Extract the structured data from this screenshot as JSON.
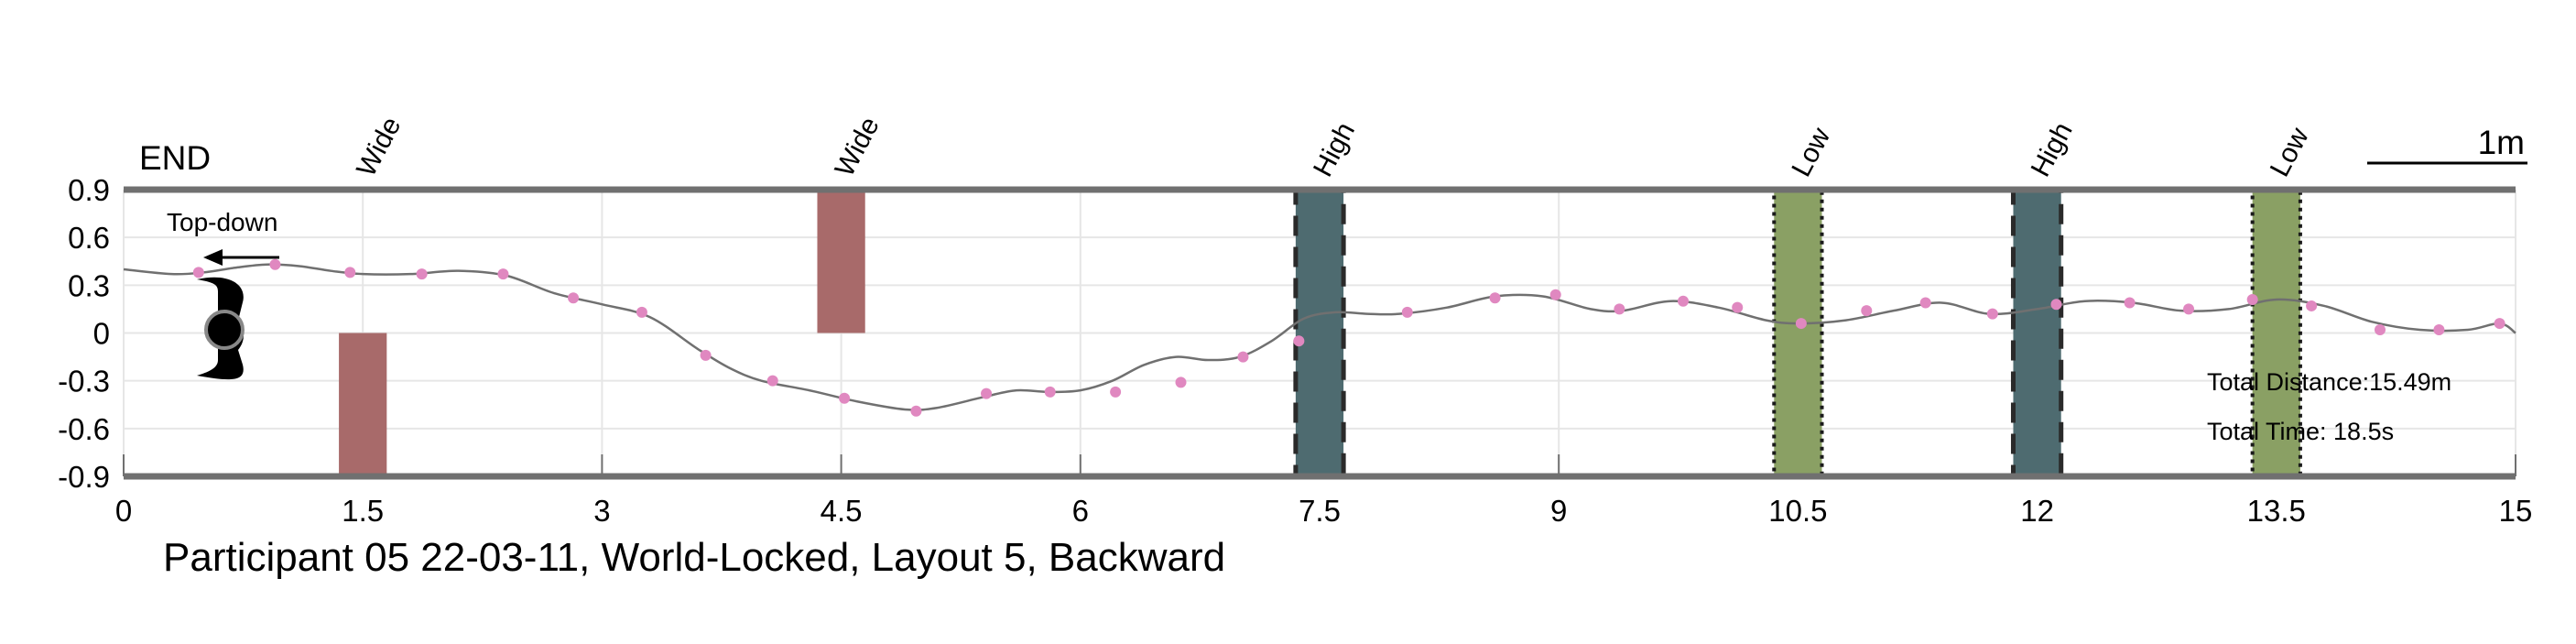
{
  "chart_data": {
    "type": "line",
    "title": "Participant 05 22-03-11, World-Locked, Layout 5, Backward",
    "xlabel": "",
    "ylabel": "",
    "xlim": [
      0,
      15
    ],
    "ylim": [
      -0.9,
      0.9
    ],
    "x_ticks": [
      "0",
      "1.5",
      "3",
      "4.5",
      "6",
      "7.5",
      "9",
      "10.5",
      "12",
      "13.5",
      "15"
    ],
    "y_ticks": [
      "0.9",
      "0.6",
      "0.3",
      "0",
      "-0.3",
      "-0.6",
      "-0.9"
    ],
    "grid": true,
    "path": {
      "x": [
        0,
        0.3,
        0.5,
        0.7,
        0.9,
        1.1,
        1.3,
        1.5,
        1.8,
        2.1,
        2.4,
        2.7,
        3.0,
        3.3,
        3.6,
        3.8,
        4.0,
        4.3,
        4.6,
        4.9,
        5.1,
        5.4,
        5.6,
        5.8,
        6.0,
        6.2,
        6.4,
        6.6,
        6.8,
        7.0,
        7.2,
        7.4,
        7.6,
        7.8,
        8.0,
        8.3,
        8.6,
        8.9,
        9.2,
        9.4,
        9.7,
        10.0,
        10.3,
        10.5,
        10.8,
        11.1,
        11.4,
        11.7,
        12.0,
        12.3,
        12.6,
        12.9,
        13.2,
        13.5,
        13.8,
        14.1,
        14.4,
        14.7,
        14.9,
        15.0
      ],
      "y": [
        0.4,
        0.37,
        0.38,
        0.41,
        0.43,
        0.42,
        0.39,
        0.37,
        0.37,
        0.39,
        0.36,
        0.25,
        0.18,
        0.1,
        -0.1,
        -0.22,
        -0.3,
        -0.36,
        -0.43,
        -0.48,
        -0.47,
        -0.4,
        -0.36,
        -0.37,
        -0.36,
        -0.3,
        -0.2,
        -0.15,
        -0.17,
        -0.15,
        -0.05,
        0.09,
        0.13,
        0.12,
        0.12,
        0.16,
        0.23,
        0.23,
        0.15,
        0.14,
        0.2,
        0.16,
        0.08,
        0.06,
        0.08,
        0.14,
        0.19,
        0.12,
        0.15,
        0.2,
        0.19,
        0.14,
        0.15,
        0.21,
        0.17,
        0.07,
        0.02,
        0.02,
        0.06,
        0.0
      ]
    },
    "markers": {
      "x": [
        0.47,
        0.95,
        1.42,
        1.87,
        2.38,
        2.82,
        3.25,
        3.65,
        4.07,
        4.52,
        4.97,
        5.41,
        5.81,
        6.22,
        6.63,
        7.02,
        7.37,
        8.05,
        8.6,
        8.98,
        9.38,
        9.78,
        10.12,
        10.52,
        10.93,
        11.3,
        11.72,
        12.12,
        12.58,
        12.95,
        13.35,
        13.72,
        14.15,
        14.52,
        14.9
      ],
      "y": [
        0.38,
        0.43,
        0.38,
        0.37,
        0.37,
        0.22,
        0.13,
        -0.14,
        -0.3,
        -0.41,
        -0.49,
        -0.38,
        -0.37,
        -0.37,
        -0.31,
        -0.15,
        -0.05,
        0.13,
        0.22,
        0.24,
        0.15,
        0.2,
        0.16,
        0.06,
        0.14,
        0.19,
        0.12,
        0.18,
        0.19,
        0.15,
        0.21,
        0.17,
        0.02,
        0.02,
        0.06
      ]
    },
    "obstacles": [
      {
        "label": "Wide",
        "x": [
          1.35,
          1.65
        ],
        "y": [
          -0.9,
          0.0
        ],
        "color": "#a86a6a",
        "style": "solid"
      },
      {
        "label": "Wide",
        "x": [
          4.35,
          4.65
        ],
        "y": [
          0.0,
          0.9
        ],
        "color": "#a86a6a",
        "style": "solid"
      },
      {
        "label": "High",
        "x": [
          7.35,
          7.65
        ],
        "y": [
          -0.9,
          0.9
        ],
        "color": "#4e6b70",
        "style": "dashed"
      },
      {
        "label": "Low",
        "x": [
          10.35,
          10.65
        ],
        "y": [
          -0.9,
          0.9
        ],
        "color": "#8aa064",
        "style": "dotted"
      },
      {
        "label": "High",
        "x": [
          11.85,
          12.15
        ],
        "y": [
          -0.9,
          0.9
        ],
        "color": "#4e6b70",
        "style": "dashed"
      },
      {
        "label": "Low",
        "x": [
          13.35,
          13.65
        ],
        "y": [
          -0.9,
          0.9
        ],
        "color": "#8aa064",
        "style": "dotted"
      }
    ],
    "annotations": {
      "end": "END",
      "view": "Top-down",
      "scale": "1m",
      "total_distance": "Total Distance:15.49m",
      "total_time": "Total Time: 18.5s"
    },
    "colors": {
      "line": "#707070",
      "marker": "#e088c0",
      "axis": "#707070",
      "grid": "#e6e6e6"
    }
  }
}
